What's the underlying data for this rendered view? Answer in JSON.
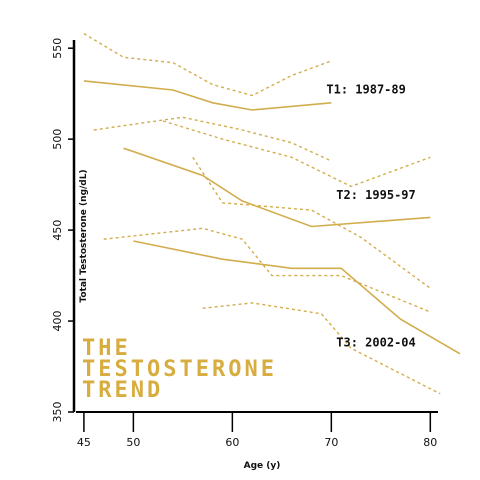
{
  "headline": [
    "THE",
    "TESTOSTERONE",
    "TREND"
  ],
  "colors": {
    "line": "#d2ad4d",
    "axis": "#000000",
    "text": "#111111",
    "headline": "#d8ad3f"
  },
  "chart_data": {
    "type": "line",
    "xlabel": "Age (y)",
    "ylabel": "Total Testosterone (ng/dL)",
    "xlim": [
      44,
      83
    ],
    "ylim": [
      350,
      560
    ],
    "xticks": [
      45,
      50,
      60,
      70,
      80
    ],
    "yticks": [
      350,
      400,
      450,
      500,
      550
    ],
    "grid": false,
    "series": [
      {
        "name": "T1: 1987-89",
        "label_at": {
          "x": 69.5,
          "y": 525
        },
        "mean": {
          "x": [
            45,
            54,
            58,
            62,
            70
          ],
          "y": [
            532,
            527,
            520,
            516,
            520
          ]
        },
        "upper": {
          "x": [
            45,
            49,
            54,
            58,
            62,
            66,
            70
          ],
          "y": [
            558,
            545,
            542,
            530,
            524,
            535,
            543
          ]
        },
        "lower": {
          "x": [
            46,
            51,
            55,
            61,
            66,
            70
          ],
          "y": [
            505,
            509,
            512,
            505,
            498,
            488
          ]
        }
      },
      {
        "name": "T2: 1995-97",
        "label_at": {
          "x": 70.5,
          "y": 467
        },
        "mean": {
          "x": [
            49,
            57,
            61,
            68,
            80
          ],
          "y": [
            495,
            480,
            466,
            452,
            457
          ]
        },
        "upper": {
          "x": [
            53,
            59,
            66,
            72,
            80
          ],
          "y": [
            510,
            500,
            490,
            474,
            490
          ]
        },
        "lower": {
          "x": [
            56,
            59,
            68,
            73,
            80
          ],
          "y": [
            490,
            465,
            461,
            446,
            418
          ]
        }
      },
      {
        "name": "T3: 2002-04",
        "label_at": {
          "x": 70.5,
          "y": 386
        },
        "mean": {
          "x": [
            50,
            59,
            66,
            71,
            77,
            83
          ],
          "y": [
            444,
            434,
            429,
            429,
            401,
            382
          ]
        },
        "upper": {
          "x": [
            47,
            57,
            61,
            64,
            71,
            80
          ],
          "y": [
            445,
            451,
            445,
            425,
            425,
            405
          ]
        },
        "lower": {
          "x": [
            57,
            62,
            69,
            72,
            81
          ],
          "y": [
            407,
            410,
            404,
            385,
            360
          ]
        }
      }
    ]
  }
}
